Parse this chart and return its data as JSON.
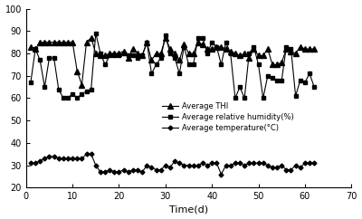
{
  "x_thi": [
    1,
    2,
    3,
    4,
    5,
    6,
    7,
    8,
    9,
    10,
    11,
    12,
    13,
    14,
    15,
    16,
    17,
    18,
    19,
    20,
    21,
    22,
    23,
    24,
    25,
    26,
    27,
    28,
    29,
    30,
    31,
    32,
    33,
    34,
    35,
    36,
    37,
    38,
    39,
    40,
    41,
    42,
    43,
    44,
    45,
    46,
    47,
    48,
    49,
    50,
    51,
    52,
    53,
    54,
    55,
    56,
    57,
    58,
    59,
    60,
    61,
    62
  ],
  "thi": [
    83,
    82,
    85,
    85,
    85,
    85,
    85,
    85,
    85,
    85,
    72,
    66,
    85,
    87,
    80,
    79,
    79,
    80,
    80,
    80,
    81,
    78,
    82,
    80,
    79,
    85,
    77,
    80,
    80,
    87,
    82,
    80,
    77,
    84,
    80,
    80,
    85,
    84,
    82,
    82,
    83,
    83,
    82,
    81,
    80,
    79,
    80,
    78,
    82,
    79,
    79,
    82,
    75,
    75,
    76,
    82,
    81,
    80,
    83,
    82,
    82,
    82
  ],
  "x_hum": [
    1,
    2,
    3,
    4,
    5,
    6,
    7,
    8,
    9,
    10,
    11,
    12,
    13,
    14,
    15,
    16,
    17,
    18,
    19,
    20,
    21,
    22,
    23,
    24,
    25,
    26,
    27,
    28,
    29,
    30,
    31,
    32,
    33,
    34,
    35,
    36,
    37,
    38,
    39,
    40,
    41,
    42,
    43,
    44,
    45,
    46,
    47,
    48,
    49,
    50,
    51,
    52,
    53,
    54,
    55,
    56,
    57,
    58,
    59,
    60,
    61,
    62
  ],
  "hum": [
    67,
    82,
    77,
    65,
    78,
    78,
    64,
    60,
    60,
    62,
    60,
    62,
    63,
    64,
    89,
    80,
    75,
    79,
    79,
    79,
    80,
    79,
    79,
    78,
    79,
    85,
    71,
    75,
    78,
    88,
    80,
    78,
    71,
    83,
    75,
    75,
    87,
    87,
    80,
    85,
    83,
    75,
    85,
    80,
    60,
    65,
    60,
    80,
    83,
    75,
    60,
    70,
    69,
    68,
    68,
    83,
    82,
    61,
    68,
    67,
    71,
    65
  ],
  "x_temp": [
    1,
    2,
    3,
    4,
    5,
    6,
    7,
    8,
    9,
    10,
    11,
    12,
    13,
    14,
    15,
    16,
    17,
    18,
    19,
    20,
    21,
    22,
    23,
    24,
    25,
    26,
    27,
    28,
    29,
    30,
    31,
    32,
    33,
    34,
    35,
    36,
    37,
    38,
    39,
    40,
    41,
    42,
    43,
    44,
    45,
    46,
    47,
    48,
    49,
    50,
    51,
    52,
    53,
    54,
    55,
    56,
    57,
    58,
    59,
    60,
    61,
    62
  ],
  "temp": [
    31,
    31,
    32,
    33,
    34,
    34,
    33,
    33,
    33,
    33,
    33,
    33,
    35,
    35,
    30,
    27,
    27,
    28,
    27,
    27,
    28,
    27,
    28,
    28,
    27,
    30,
    29,
    28,
    28,
    30,
    29,
    32,
    31,
    30,
    30,
    30,
    30,
    31,
    30,
    31,
    31,
    26,
    30,
    30,
    31,
    31,
    30,
    31,
    31,
    31,
    31,
    30,
    29,
    29,
    30,
    28,
    28,
    30,
    29,
    31,
    31,
    31
  ],
  "xlabel": "Time(d)",
  "xlim": [
    0,
    70
  ],
  "ylim": [
    20,
    100
  ],
  "yticks": [
    20,
    30,
    40,
    50,
    60,
    70,
    80,
    90,
    100
  ],
  "xticks": [
    0,
    10,
    20,
    30,
    40,
    50,
    60,
    70
  ],
  "legend_thi": "Average THI",
  "legend_hum": "Average relative humidity(%)",
  "legend_temp": "Average temperature(°C)",
  "color": "#000000",
  "bg_color": "#ffffff",
  "linewidth": 0.8,
  "marker_thi": "^",
  "marker_hum": "s",
  "marker_temp": "D",
  "markersize_thi": 4,
  "markersize_hum": 3.5,
  "markersize_temp": 2.5
}
